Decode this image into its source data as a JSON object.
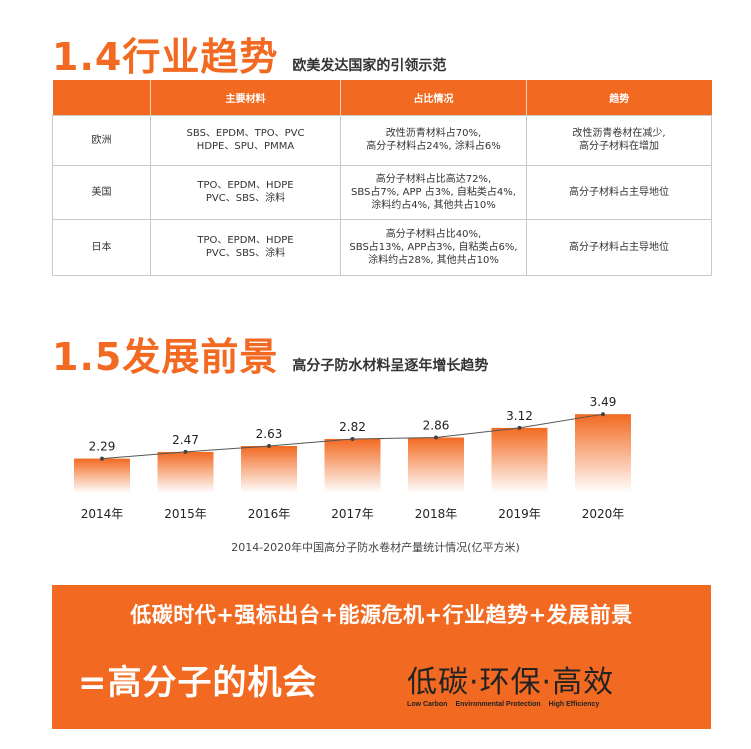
{
  "section_trend": {
    "number_title": "1.4行业趋势",
    "subtitle": "欧美发达国家的引领示范",
    "table": {
      "headers": [
        "",
        "主要材料",
        "占比情况",
        "趋势"
      ],
      "rows": [
        {
          "region": "欧洲",
          "materials": "SBS、EPDM、TPO、PVC\nHDPE、SPU、PMMA",
          "share": "改性沥青材料占70%,\n高分子材料占24%, 涂料占6%",
          "trend": "改性沥青卷材在减少,\n高分子材料在增加"
        },
        {
          "region": "美国",
          "materials": "TPO、EPDM、HDPE\nPVC、SBS、涂料",
          "share": "高分子材料占比高达72%,\nSBS占7%, APP 占3%, 自粘类占4%,\n涂料约占4%, 其他共占10%",
          "trend": "高分子材料占主导地位"
        },
        {
          "region": "日本",
          "materials": "TPO、EPDM、HDPE\nPVC、SBS、涂料",
          "share": "高分子材料占比40%,\nSBS占13%, APP占3%, 自粘类占6%,\n涂料约占28%, 其他共占10%",
          "trend": "高分子材料占主导地位"
        }
      ]
    }
  },
  "section_prospect": {
    "number_title": "1.5发展前景",
    "subtitle": "高分子防水材料呈逐年增长趋势",
    "caption": "2014-2020年中国高分子防水卷材产量统计情况(亿平方米)"
  },
  "chart_data": {
    "type": "bar",
    "categories": [
      "2014年",
      "2015年",
      "2016年",
      "2017年",
      "2018年",
      "2019年",
      "2020年"
    ],
    "values": [
      2.29,
      2.47,
      2.63,
      2.82,
      2.86,
      3.12,
      3.49
    ],
    "value_labels": [
      "2.29",
      "2.47",
      "2.63",
      "2.82",
      "2.86",
      "3.12",
      "3.49"
    ],
    "overlay": "line",
    "colors": {
      "bar_top": "#f26a21",
      "bar_bottom": "#ffffff",
      "line": "#555555"
    }
  },
  "banner": {
    "line1": "低碳时代+强标出台+能源危机+行业趋势+发展前景",
    "line2": "=高分子的机会",
    "slogan": "低碳·环保·高效",
    "slogan_en": [
      "Low Carbon",
      "Environmental Protection",
      "High Efficiency"
    ]
  },
  "colors": {
    "accent": "#f26a21",
    "table_border": "#c9c9c9"
  }
}
